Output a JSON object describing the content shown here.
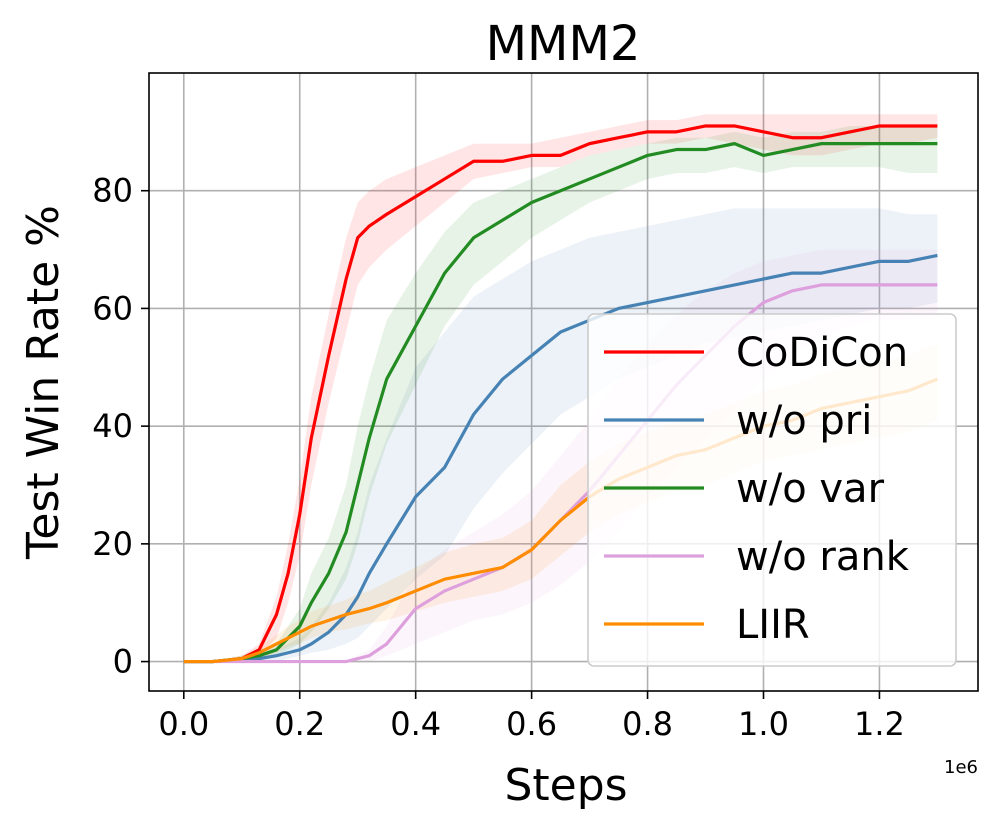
{
  "chart_data": {
    "type": "line",
    "title": "MMM2",
    "xlabel": "Steps",
    "ylabel": "Test Win Rate %",
    "x_offset_label": "1e6",
    "xlim": [
      -0.06,
      1.37
    ],
    "ylim": [
      -5,
      100
    ],
    "xticks": [
      0.0,
      0.2,
      0.4,
      0.6,
      0.8,
      1.0,
      1.2
    ],
    "xtick_labels": [
      "0.0",
      "0.2",
      "0.4",
      "0.6",
      "0.8",
      "1.0",
      "1.2"
    ],
    "yticks": [
      0,
      20,
      40,
      60,
      80
    ],
    "ytick_labels": [
      "0",
      "20",
      "40",
      "60",
      "80"
    ],
    "grid": true,
    "legend_position": "lower-right",
    "x": [
      0.0,
      0.05,
      0.1,
      0.13,
      0.16,
      0.18,
      0.2,
      0.22,
      0.25,
      0.28,
      0.3,
      0.32,
      0.35,
      0.4,
      0.45,
      0.5,
      0.55,
      0.6,
      0.65,
      0.7,
      0.75,
      0.8,
      0.85,
      0.9,
      0.95,
      1.0,
      1.05,
      1.1,
      1.15,
      1.2,
      1.25,
      1.3
    ],
    "series": [
      {
        "name": "CoDiCon",
        "color": "#ff0000",
        "values": [
          0,
          0,
          0.5,
          2,
          8,
          15,
          25,
          38,
          52,
          65,
          72,
          74,
          76,
          79,
          82,
          85,
          85,
          86,
          86,
          88,
          89,
          90,
          90,
          91,
          91,
          90,
          89,
          89,
          90,
          91,
          91,
          91
        ],
        "lower": [
          0,
          0,
          0,
          1,
          4,
          10,
          18,
          30,
          44,
          56,
          64,
          67,
          70,
          74,
          78,
          82,
          83,
          84,
          84,
          86,
          87,
          88,
          88,
          89,
          88,
          87,
          86,
          86,
          87,
          88,
          88,
          89
        ],
        "upper": [
          0,
          0,
          1,
          3,
          11,
          20,
          31,
          45,
          59,
          72,
          78,
          80,
          82,
          84,
          86,
          88,
          88,
          88,
          89,
          90,
          91,
          92,
          92,
          93,
          93,
          93,
          93,
          93,
          93,
          93,
          93,
          93
        ]
      },
      {
        "name": "w/o pri",
        "color": "#4682b4",
        "values": [
          0,
          0,
          0.3,
          0.5,
          1,
          1.5,
          2,
          3,
          5,
          8,
          11,
          15,
          20,
          28,
          33,
          42,
          48,
          52,
          56,
          58,
          60,
          61,
          62,
          63,
          64,
          65,
          66,
          66,
          67,
          68,
          68,
          69
        ],
        "lower": [
          0,
          0,
          0,
          0,
          0,
          0.5,
          1,
          1.5,
          2,
          3,
          4,
          6,
          9,
          14,
          18,
          26,
          32,
          37,
          42,
          45,
          48,
          50,
          52,
          54,
          55,
          56,
          57,
          58,
          59,
          60,
          60,
          61
        ],
        "upper": [
          0,
          0,
          0.5,
          1,
          2,
          3,
          4,
          6,
          10,
          16,
          22,
          30,
          38,
          50,
          56,
          62,
          65,
          68,
          70,
          72,
          73,
          74,
          75,
          76,
          77,
          77,
          77,
          77,
          77,
          77,
          76,
          76
        ]
      },
      {
        "name": "w/o var",
        "color": "#228b22",
        "values": [
          0,
          0,
          0.5,
          1,
          2,
          4,
          6,
          10,
          15,
          22,
          30,
          38,
          48,
          57,
          66,
          72,
          75,
          78,
          80,
          82,
          84,
          86,
          87,
          87,
          88,
          86,
          87,
          88,
          88,
          88,
          88,
          88
        ],
        "lower": [
          0,
          0,
          0,
          0.5,
          1,
          2,
          3,
          5,
          9,
          14,
          20,
          28,
          37,
          47,
          57,
          64,
          68,
          72,
          75,
          78,
          80,
          82,
          83,
          83,
          84,
          83,
          84,
          84,
          84,
          84,
          83,
          83
        ],
        "upper": [
          0,
          0,
          1,
          2,
          3,
          6,
          9,
          15,
          21,
          30,
          40,
          48,
          58,
          66,
          73,
          78,
          80,
          82,
          84,
          86,
          87,
          88,
          89,
          89,
          90,
          89,
          90,
          90,
          91,
          91,
          91,
          91
        ]
      },
      {
        "name": "w/o rank",
        "color": "#dda0dd",
        "values": [
          0,
          0,
          0,
          0,
          0,
          0,
          0,
          0,
          0,
          0,
          0.5,
          1,
          3,
          9,
          12,
          14,
          16,
          19,
          24,
          29,
          35,
          41,
          47,
          52,
          57,
          61,
          63,
          64,
          64,
          64,
          64,
          64
        ],
        "lower": [
          0,
          0,
          0,
          0,
          0,
          0,
          0,
          0,
          0,
          0,
          0,
          0,
          1,
          3,
          5,
          7,
          8,
          10,
          13,
          17,
          22,
          28,
          33,
          38,
          43,
          48,
          52,
          55,
          57,
          58,
          58,
          59
        ],
        "upper": [
          0,
          0,
          0,
          0,
          0,
          0,
          0,
          0,
          0,
          0,
          1,
          2,
          6,
          15,
          19,
          22,
          25,
          29,
          35,
          41,
          48,
          54,
          59,
          63,
          66,
          68,
          69,
          70,
          70,
          70,
          70,
          70
        ]
      },
      {
        "name": "LIIR",
        "color": "#ff8c00",
        "values": [
          0,
          0,
          0.5,
          1.5,
          3,
          4,
          5,
          6,
          7,
          8,
          8.5,
          9,
          10,
          12,
          14,
          15,
          16,
          19,
          24,
          28,
          31,
          33,
          35,
          36,
          38,
          40,
          41,
          43,
          44,
          45,
          46,
          48
        ],
        "lower": [
          0,
          0,
          0,
          0.5,
          1.5,
          2.5,
          3,
          4,
          5,
          5.5,
          6,
          6.5,
          7,
          8.5,
          10,
          11,
          12,
          14,
          18,
          22,
          25,
          27,
          29,
          30,
          32,
          34,
          35,
          36,
          37,
          38,
          39,
          41
        ],
        "upper": [
          0,
          0,
          1,
          2.5,
          4.5,
          6,
          7,
          8.5,
          9.5,
          10.5,
          11.5,
          12,
          13.5,
          16,
          18.5,
          20,
          21,
          24,
          30,
          34,
          37,
          39,
          41,
          42,
          44,
          46,
          47,
          49,
          50,
          51,
          52,
          54
        ]
      }
    ]
  }
}
